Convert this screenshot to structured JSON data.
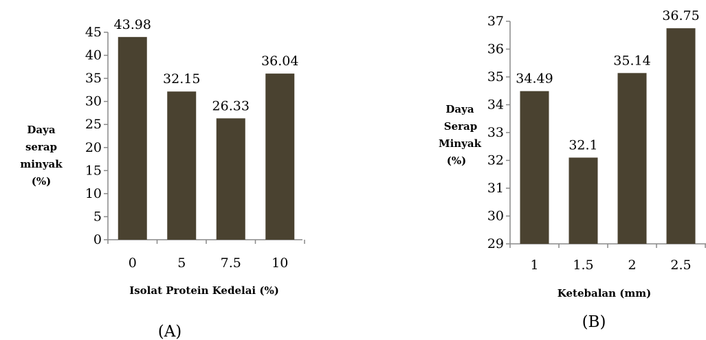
{
  "chart_data": [
    {
      "type": "bar",
      "panel_label": "(A)",
      "categories": [
        "0",
        "5",
        "7.5",
        "10"
      ],
      "values": [
        43.98,
        32.15,
        26.33,
        36.04
      ],
      "data_labels": [
        "43.98",
        "32.15",
        "26.33",
        "36.04"
      ],
      "xlabel": "Isolat Protein Kedelai (%)",
      "ylabel_lines": [
        "Daya",
        "serap",
        "minyak",
        "(%)"
      ],
      "ylim": [
        0,
        45
      ],
      "yticks": [
        "0",
        "5",
        "10",
        "15",
        "20",
        "25",
        "30",
        "35",
        "40",
        "45"
      ],
      "bar_color": "#4a4230",
      "grid": false
    },
    {
      "type": "bar",
      "panel_label": "(B)",
      "categories": [
        "1",
        "1.5",
        "2",
        "2.5"
      ],
      "values": [
        34.49,
        32.1,
        35.14,
        36.75
      ],
      "data_labels": [
        "34.49",
        "32.1",
        "35.14",
        "36.75"
      ],
      "xlabel": "Ketebalan (mm)",
      "ylabel_lines": [
        "Daya",
        "Serap",
        "Minyak",
        "(%)"
      ],
      "ylim": [
        29,
        37
      ],
      "yticks": [
        "29",
        "30",
        "31",
        "32",
        "33",
        "34",
        "35",
        "36",
        "37"
      ],
      "bar_color": "#4a4230",
      "grid": false
    }
  ]
}
